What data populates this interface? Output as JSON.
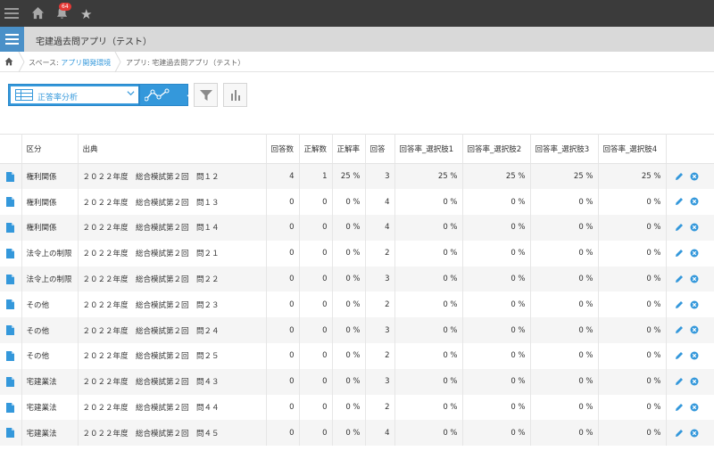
{
  "header": {
    "notification_count": "64",
    "icons": [
      "menu-icon",
      "home-icon",
      "bell-icon",
      "star-icon"
    ]
  },
  "app": {
    "title": "宅建過去問アプリ（テスト）",
    "accent_color": "#3498db"
  },
  "breadcrumb": {
    "space_prefix": "スペース: ",
    "space_name": "アプリ開発環境",
    "app_crumb": "アプリ: 宅建過去問アプリ（テスト）"
  },
  "toolbar": {
    "view_label": "正答率分析"
  },
  "table": {
    "headers": [
      "区分",
      "出典",
      "回答数",
      "正解数",
      "正解率",
      "回答",
      "回答率_選択肢1",
      "回答率_選択肢2",
      "回答率_選択肢3",
      "回答率_選択肢4"
    ],
    "rows": [
      {
        "category": "権利関係",
        "source": "２０２２年度　総合模試第２回　問１２",
        "answers": "4",
        "correct": "1",
        "rate": "25 %",
        "answer": "3",
        "c1": "25 %",
        "c2": "25 %",
        "c3": "25 %",
        "c4": "25 %"
      },
      {
        "category": "権利関係",
        "source": "２０２２年度　総合模試第２回　問１３",
        "answers": "0",
        "correct": "0",
        "rate": "0 %",
        "answer": "4",
        "c1": "0 %",
        "c2": "0 %",
        "c3": "0 %",
        "c4": "0 %"
      },
      {
        "category": "権利関係",
        "source": "２０２２年度　総合模試第２回　問１４",
        "answers": "0",
        "correct": "0",
        "rate": "0 %",
        "answer": "4",
        "c1": "0 %",
        "c2": "0 %",
        "c3": "0 %",
        "c4": "0 %"
      },
      {
        "category": "法令上の制限",
        "source": "２０２２年度　総合模試第２回　問２１",
        "answers": "0",
        "correct": "0",
        "rate": "0 %",
        "answer": "2",
        "c1": "0 %",
        "c2": "0 %",
        "c3": "0 %",
        "c4": "0 %"
      },
      {
        "category": "法令上の制限",
        "source": "２０２２年度　総合模試第２回　問２２",
        "answers": "0",
        "correct": "0",
        "rate": "0 %",
        "answer": "3",
        "c1": "0 %",
        "c2": "0 %",
        "c3": "0 %",
        "c4": "0 %"
      },
      {
        "category": "その他",
        "source": "２０２２年度　総合模試第２回　問２３",
        "answers": "0",
        "correct": "0",
        "rate": "0 %",
        "answer": "2",
        "c1": "0 %",
        "c2": "0 %",
        "c3": "0 %",
        "c4": "0 %"
      },
      {
        "category": "その他",
        "source": "２０２２年度　総合模試第２回　問２４",
        "answers": "0",
        "correct": "0",
        "rate": "0 %",
        "answer": "3",
        "c1": "0 %",
        "c2": "0 %",
        "c3": "0 %",
        "c4": "0 %"
      },
      {
        "category": "その他",
        "source": "２０２２年度　総合模試第２回　問２５",
        "answers": "0",
        "correct": "0",
        "rate": "0 %",
        "answer": "2",
        "c1": "0 %",
        "c2": "0 %",
        "c3": "0 %",
        "c4": "0 %"
      },
      {
        "category": "宅建業法",
        "source": "２０２２年度　総合模試第２回　問４３",
        "answers": "0",
        "correct": "0",
        "rate": "0 %",
        "answer": "3",
        "c1": "0 %",
        "c2": "0 %",
        "c3": "0 %",
        "c4": "0 %"
      },
      {
        "category": "宅建業法",
        "source": "２０２２年度　総合模試第２回　問４４",
        "answers": "0",
        "correct": "0",
        "rate": "0 %",
        "answer": "2",
        "c1": "0 %",
        "c2": "0 %",
        "c3": "0 %",
        "c4": "0 %"
      },
      {
        "category": "宅建業法",
        "source": "２０２２年度　総合模試第２回　問４５",
        "answers": "0",
        "correct": "0",
        "rate": "0 %",
        "answer": "4",
        "c1": "0 %",
        "c2": "0 %",
        "c3": "0 %",
        "c4": "0 %"
      }
    ]
  }
}
